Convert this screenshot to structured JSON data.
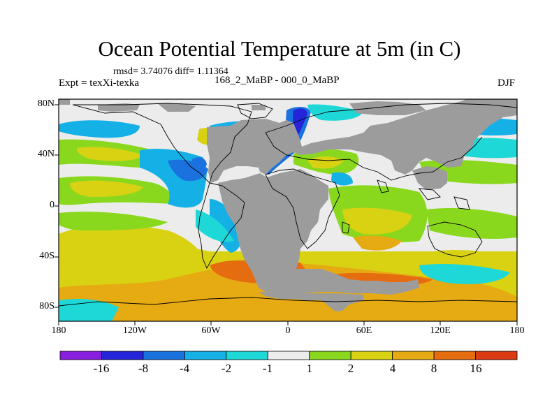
{
  "title": "Ocean Potential Temperature at 5m (in C)",
  "stats": "rmsd= 3.74076 diff= 1.11364",
  "expt": "Expt = texXi-texka",
  "subtitle": "168_2_MaBP - 000_0_MaBP",
  "season": "DJF",
  "lat_labels": [
    "80N",
    "40N",
    "0",
    "40S",
    "80S"
  ],
  "lon_labels": [
    "180",
    "120W",
    "60W",
    "0",
    "60E",
    "120E",
    "180"
  ],
  "colorbar": {
    "labels": [
      "-16",
      "-8",
      "-4",
      "-2",
      "-1",
      "1",
      "2",
      "4",
      "8",
      "16"
    ],
    "colors": [
      "#8a1ee0",
      "#2424d8",
      "#1a72de",
      "#14b0e6",
      "#1ed8d8",
      "#ececec",
      "#8ad81e",
      "#d8d212",
      "#e6aa12",
      "#e66c10",
      "#dc3a12"
    ]
  },
  "land_color": "#9c9c9c",
  "chart_data": {
    "type": "heatmap",
    "title": "Ocean Potential Temperature at 5m (in C)",
    "variable": "Ocean potential temperature anomaly at 5m depth",
    "units": "C",
    "comparison": "168_2_MaBP - 000_0_MaBP",
    "season": "DJF",
    "rmsd": 3.74076,
    "diff": 1.11364,
    "xlim": [
      -180,
      180
    ],
    "ylim": [
      -90,
      90
    ],
    "levels": [
      -16,
      -8,
      -4,
      -2,
      -1,
      1,
      2,
      4,
      8,
      16
    ]
  }
}
